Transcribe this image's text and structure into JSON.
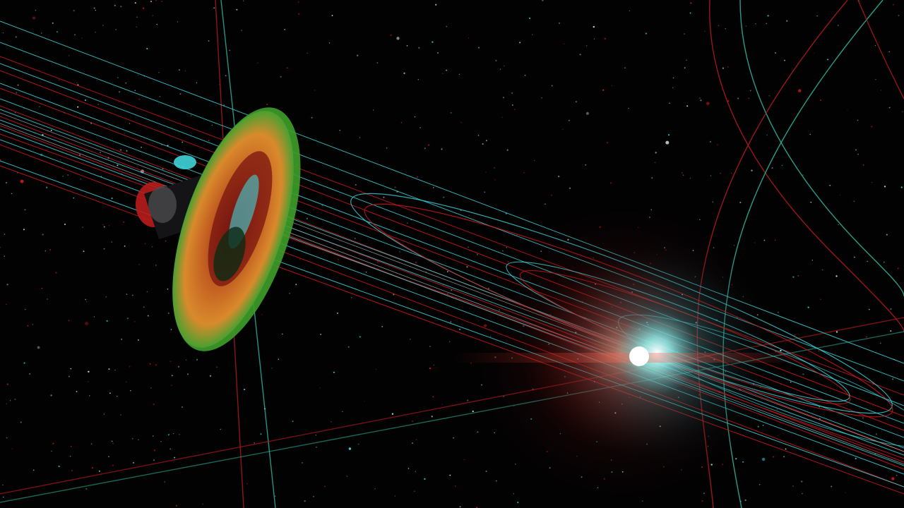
{
  "scene": {
    "mode": "anaglyph-3d",
    "view": "solar-system-orbits",
    "colors": {
      "background": "#020203",
      "left_eye": "#d1181c",
      "right_eye": "#3fd3d8",
      "spacecraft_disc": "#c86a1e",
      "spacecraft_disc_rim": "#3e9e2a",
      "sun_core": "#ffffff",
      "sun_glow_red": "#ff3b2a",
      "sun_glow_cyan": "#5ff2f0"
    },
    "objects": [
      {
        "name": "spacecraft",
        "kind": "probe-with-dish"
      },
      {
        "name": "sun",
        "kind": "star"
      },
      {
        "name": "orbit-paths",
        "kind": "ecliptic-orbits"
      },
      {
        "name": "polar-orbits",
        "kind": "inclined-orbits"
      },
      {
        "name": "starfield",
        "kind": "background-stars"
      }
    ]
  }
}
